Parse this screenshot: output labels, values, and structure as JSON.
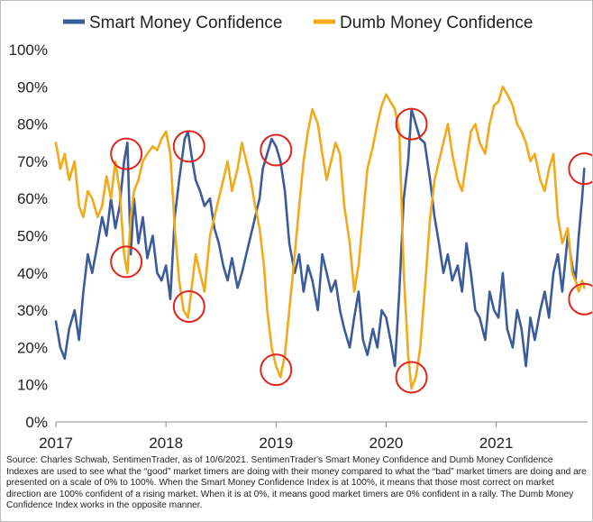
{
  "chart_data": {
    "type": "line",
    "title": "",
    "xlabel": "",
    "ylabel": "",
    "ylim": [
      0,
      100
    ],
    "yticks": [
      "0%",
      "10%",
      "20%",
      "30%",
      "40%",
      "50%",
      "60%",
      "70%",
      "80%",
      "90%",
      "100%"
    ],
    "xticks": [
      "2017",
      "2018",
      "2019",
      "2020",
      "2021"
    ],
    "xlim": [
      2017.0,
      2021.83
    ],
    "series": [
      {
        "name": "Smart Money Confidence",
        "color": "#3c5b9a",
        "x": [
          2017.0,
          2017.04,
          2017.08,
          2017.12,
          2017.17,
          2017.21,
          2017.25,
          2017.29,
          2017.33,
          2017.38,
          2017.42,
          2017.46,
          2017.5,
          2017.54,
          2017.58,
          2017.62,
          2017.65,
          2017.68,
          2017.71,
          2017.75,
          2017.79,
          2017.83,
          2017.88,
          2017.92,
          2017.96,
          2018.0,
          2018.04,
          2018.08,
          2018.12,
          2018.17,
          2018.2,
          2018.23,
          2018.27,
          2018.31,
          2018.35,
          2018.4,
          2018.44,
          2018.48,
          2018.52,
          2018.56,
          2018.6,
          2018.65,
          2018.69,
          2018.73,
          2018.77,
          2018.81,
          2018.85,
          2018.88,
          2018.92,
          2018.96,
          2019.0,
          2019.04,
          2019.08,
          2019.12,
          2019.17,
          2019.21,
          2019.25,
          2019.29,
          2019.33,
          2019.38,
          2019.42,
          2019.46,
          2019.5,
          2019.54,
          2019.58,
          2019.62,
          2019.67,
          2019.71,
          2019.75,
          2019.79,
          2019.83,
          2019.88,
          2019.92,
          2019.96,
          2020.0,
          2020.04,
          2020.08,
          2020.12,
          2020.16,
          2020.2,
          2020.23,
          2020.27,
          2020.31,
          2020.35,
          2020.4,
          2020.44,
          2020.48,
          2020.52,
          2020.56,
          2020.6,
          2020.65,
          2020.69,
          2020.73,
          2020.77,
          2020.81,
          2020.85,
          2020.9,
          2020.94,
          2020.98,
          2021.02,
          2021.06,
          2021.1,
          2021.15,
          2021.19,
          2021.23,
          2021.27,
          2021.31,
          2021.35,
          2021.4,
          2021.44,
          2021.48,
          2021.52,
          2021.56,
          2021.6,
          2021.65,
          2021.69,
          2021.72,
          2021.75,
          2021.78,
          2021.8
        ],
        "values": [
          27,
          20,
          17,
          25,
          30,
          22,
          35,
          45,
          40,
          48,
          55,
          50,
          60,
          52,
          58,
          70,
          75,
          45,
          60,
          48,
          55,
          44,
          50,
          40,
          38,
          42,
          33,
          55,
          65,
          76,
          78,
          72,
          65,
          62,
          58,
          60,
          52,
          48,
          42,
          38,
          44,
          36,
          40,
          45,
          50,
          55,
          60,
          68,
          72,
          76,
          74,
          70,
          62,
          48,
          40,
          45,
          35,
          42,
          38,
          30,
          45,
          40,
          35,
          38,
          30,
          25,
          20,
          28,
          35,
          22,
          18,
          25,
          20,
          30,
          28,
          22,
          15,
          35,
          60,
          70,
          84,
          80,
          76,
          75,
          65,
          55,
          48,
          40,
          45,
          38,
          42,
          35,
          48,
          40,
          30,
          28,
          22,
          35,
          30,
          28,
          40,
          25,
          20,
          30,
          25,
          15,
          28,
          22,
          30,
          35,
          28,
          40,
          45,
          35,
          50,
          42,
          38,
          50,
          60,
          68
        ]
      },
      {
        "name": "Dumb Money Confidence",
        "color": "#f0aa1c",
        "x": [
          2017.0,
          2017.04,
          2017.08,
          2017.12,
          2017.17,
          2017.21,
          2017.25,
          2017.29,
          2017.33,
          2017.38,
          2017.42,
          2017.46,
          2017.5,
          2017.54,
          2017.58,
          2017.62,
          2017.65,
          2017.68,
          2017.71,
          2017.75,
          2017.79,
          2017.83,
          2017.88,
          2017.92,
          2017.96,
          2018.0,
          2018.04,
          2018.08,
          2018.12,
          2018.16,
          2018.2,
          2018.23,
          2018.27,
          2018.31,
          2018.35,
          2018.4,
          2018.44,
          2018.48,
          2018.52,
          2018.56,
          2018.6,
          2018.65,
          2018.69,
          2018.73,
          2018.77,
          2018.81,
          2018.85,
          2018.89,
          2018.92,
          2018.96,
          2019.0,
          2019.04,
          2019.08,
          2019.12,
          2019.17,
          2019.21,
          2019.25,
          2019.29,
          2019.33,
          2019.38,
          2019.42,
          2019.46,
          2019.5,
          2019.54,
          2019.58,
          2019.62,
          2019.67,
          2019.71,
          2019.75,
          2019.79,
          2019.83,
          2019.88,
          2019.92,
          2019.96,
          2020.0,
          2020.04,
          2020.08,
          2020.12,
          2020.16,
          2020.2,
          2020.23,
          2020.27,
          2020.31,
          2020.35,
          2020.4,
          2020.44,
          2020.48,
          2020.52,
          2020.56,
          2020.6,
          2020.65,
          2020.69,
          2020.73,
          2020.77,
          2020.81,
          2020.85,
          2020.9,
          2020.94,
          2020.98,
          2021.02,
          2021.06,
          2021.1,
          2021.15,
          2021.19,
          2021.23,
          2021.27,
          2021.31,
          2021.35,
          2021.4,
          2021.44,
          2021.48,
          2021.52,
          2021.56,
          2021.6,
          2021.65,
          2021.69,
          2021.72,
          2021.75,
          2021.78,
          2021.8
        ],
        "values": [
          75,
          68,
          72,
          65,
          70,
          58,
          55,
          62,
          60,
          55,
          58,
          66,
          60,
          70,
          62,
          45,
          40,
          55,
          62,
          65,
          70,
          72,
          74,
          73,
          76,
          78,
          72,
          52,
          38,
          30,
          28,
          35,
          45,
          40,
          35,
          50,
          55,
          60,
          65,
          70,
          62,
          68,
          75,
          70,
          65,
          58,
          52,
          42,
          30,
          20,
          15,
          12,
          18,
          30,
          45,
          58,
          70,
          78,
          84,
          80,
          72,
          65,
          70,
          75,
          72,
          58,
          48,
          35,
          42,
          55,
          68,
          74,
          80,
          85,
          88,
          86,
          84,
          78,
          40,
          18,
          9,
          12,
          20,
          35,
          55,
          65,
          70,
          75,
          80,
          72,
          65,
          62,
          70,
          78,
          80,
          75,
          72,
          80,
          85,
          86,
          90,
          88,
          85,
          80,
          78,
          75,
          70,
          72,
          65,
          62,
          68,
          72,
          55,
          48,
          52,
          40,
          38,
          35,
          38,
          36
        ]
      }
    ],
    "highlight_circles": [
      {
        "x": 2017.64,
        "y": 72
      },
      {
        "x": 2017.64,
        "y": 43
      },
      {
        "x": 2018.21,
        "y": 74
      },
      {
        "x": 2018.21,
        "y": 31
      },
      {
        "x": 2019.0,
        "y": 73
      },
      {
        "x": 2019.0,
        "y": 14
      },
      {
        "x": 2020.23,
        "y": 80
      },
      {
        "x": 2020.23,
        "y": 12
      },
      {
        "x": 2021.8,
        "y": 68
      },
      {
        "x": 2021.8,
        "y": 33
      }
    ],
    "highlight_color": "#e2231a"
  },
  "legend": {
    "smart_label": "Smart Money Confidence",
    "dumb_label": "Dumb Money Confidence"
  },
  "source_note": "Source: Charles Schwab, SentimenTrader, as of 10/6/2021. SentimenTrader's Smart Money Confidence and Dumb Money Confidence Indexes are used to see what the “good” market timers are doing with their money compared to what the “bad” market timers are doing and are presented on a scale of 0% to 100%.  When the Smart Money Confidence Index is at 100%, it means that those most correct on market direction are 100% confident of a rising market. When it is at 0%, it means good market timers are 0% confident in a rally. The Dumb Money Confidence Index works in the opposite manner."
}
